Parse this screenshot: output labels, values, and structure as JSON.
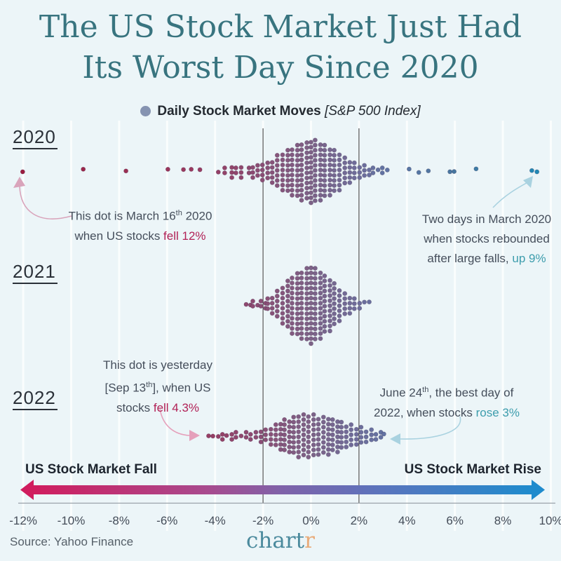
{
  "title": {
    "line1": "The US Stock Market Just Had",
    "line2": "Its Worst Day Since 2020",
    "color": "#38747f"
  },
  "legend": {
    "dot_icon": "daily-move-dot-icon",
    "dot_color": "#8593b1",
    "label": "Daily Stock Market Moves",
    "detail": "[S&P 500 Index]"
  },
  "chart_data": {
    "type": "beeswarm",
    "unit": "percent daily change",
    "x_axis": {
      "min": -12,
      "max": 10,
      "tick_values": [
        -12,
        -10,
        -8,
        -6,
        -4,
        -2,
        0,
        2,
        4,
        6,
        8,
        10
      ],
      "tick_labels": [
        "-12%",
        "-10%",
        "-8%",
        "-6%",
        "-4%",
        "-2%",
        "0%",
        "2%",
        "4%",
        "6%",
        "8%",
        "10%"
      ],
      "grid": true
    },
    "reference_lines": [
      -2,
      2
    ],
    "color_scale": [
      {
        "v": -12,
        "c": "#9b1c40"
      },
      {
        "v": -5,
        "c": "#99395f"
      },
      {
        "v": -2.5,
        "c": "#8d4a71"
      },
      {
        "v": 0,
        "c": "#7d6287"
      },
      {
        "v": 2,
        "c": "#6d6d9b"
      },
      {
        "v": 3.5,
        "c": "#5d76a6"
      },
      {
        "v": 6,
        "c": "#47769f"
      },
      {
        "v": 9.5,
        "c": "#2089b6"
      }
    ],
    "rows": [
      {
        "year": "2020",
        "columns": [
          [
            -12,
            1
          ],
          [
            -9.5,
            1
          ],
          [
            -7.7,
            1
          ],
          [
            -6,
            1
          ],
          [
            -5.3,
            1
          ],
          [
            -5,
            1
          ],
          [
            -4.6,
            1
          ],
          [
            -3.9,
            1
          ],
          [
            -3.6,
            2
          ],
          [
            -3.3,
            3
          ],
          [
            -3.1,
            2
          ],
          [
            -2.9,
            3
          ],
          [
            -2.6,
            2
          ],
          [
            -2.4,
            3
          ],
          [
            -2.2,
            3
          ],
          [
            -2,
            4
          ],
          [
            -1.8,
            4
          ],
          [
            -1.6,
            5
          ],
          [
            -1.4,
            7
          ],
          [
            -1.2,
            8
          ],
          [
            -1,
            9
          ],
          [
            -0.8,
            10
          ],
          [
            -0.6,
            11
          ],
          [
            -0.4,
            12
          ],
          [
            -0.2,
            12
          ],
          [
            0,
            13
          ],
          [
            0.2,
            13
          ],
          [
            0.4,
            12
          ],
          [
            0.6,
            11
          ],
          [
            0.8,
            10
          ],
          [
            1,
            9
          ],
          [
            1.2,
            8
          ],
          [
            1.4,
            6
          ],
          [
            1.6,
            5
          ],
          [
            1.8,
            4
          ],
          [
            2,
            3
          ],
          [
            2.2,
            3
          ],
          [
            2.4,
            2
          ],
          [
            2.6,
            2
          ],
          [
            2.8,
            1
          ],
          [
            3,
            2
          ],
          [
            3.2,
            1
          ],
          [
            4.1,
            1
          ],
          [
            4.5,
            1
          ],
          [
            4.9,
            1
          ],
          [
            5.8,
            1
          ],
          [
            6,
            1
          ],
          [
            6.9,
            1
          ],
          [
            9.2,
            1
          ],
          [
            9.4,
            1
          ]
        ]
      },
      {
        "year": "2021",
        "columns": [
          [
            -2.7,
            1
          ],
          [
            -2.5,
            1
          ],
          [
            -2.4,
            2
          ],
          [
            -2.2,
            1
          ],
          [
            -2.1,
            2
          ],
          [
            -1.9,
            2
          ],
          [
            -1.8,
            3
          ],
          [
            -1.6,
            4
          ],
          [
            -1.4,
            6
          ],
          [
            -1.2,
            8
          ],
          [
            -1,
            10
          ],
          [
            -0.8,
            12
          ],
          [
            -0.6,
            13
          ],
          [
            -0.4,
            14
          ],
          [
            -0.2,
            15
          ],
          [
            0,
            16
          ],
          [
            0.2,
            15
          ],
          [
            0.4,
            14
          ],
          [
            0.6,
            12
          ],
          [
            0.8,
            11
          ],
          [
            1,
            9
          ],
          [
            1.2,
            7
          ],
          [
            1.4,
            5
          ],
          [
            1.6,
            4
          ],
          [
            1.8,
            3
          ],
          [
            2,
            2
          ],
          [
            2.2,
            1
          ],
          [
            2.4,
            1
          ]
        ]
      },
      {
        "year": "2022",
        "columns": [
          [
            -4.3,
            1
          ],
          [
            -4.1,
            1
          ],
          [
            -3.9,
            1
          ],
          [
            -3.7,
            2
          ],
          [
            -3.5,
            1
          ],
          [
            -3.3,
            2
          ],
          [
            -3.1,
            2
          ],
          [
            -2.9,
            1
          ],
          [
            -2.7,
            2
          ],
          [
            -2.5,
            2
          ],
          [
            -2.3,
            2
          ],
          [
            -2.1,
            3
          ],
          [
            -1.9,
            3
          ],
          [
            -1.7,
            4
          ],
          [
            -1.5,
            5
          ],
          [
            -1.3,
            6
          ],
          [
            -1.1,
            7
          ],
          [
            -0.9,
            7
          ],
          [
            -0.7,
            8
          ],
          [
            -0.5,
            9
          ],
          [
            -0.3,
            9
          ],
          [
            -0.1,
            9
          ],
          [
            0.1,
            9
          ],
          [
            0.3,
            8
          ],
          [
            0.5,
            8
          ],
          [
            0.7,
            8
          ],
          [
            0.9,
            7
          ],
          [
            1.1,
            7
          ],
          [
            1.3,
            6
          ],
          [
            1.5,
            5
          ],
          [
            1.7,
            5
          ],
          [
            1.9,
            4
          ],
          [
            2.1,
            4
          ],
          [
            2.3,
            3
          ],
          [
            2.5,
            3
          ],
          [
            2.7,
            2
          ],
          [
            2.9,
            2
          ],
          [
            3.05,
            1
          ]
        ]
      }
    ]
  },
  "annotations": {
    "march16": {
      "l1a": "This dot is March 16",
      "l1sup": "th",
      "l1b": " 2020",
      "l2a": "when US stocks ",
      "l2b": "fell 12%",
      "highlight_color": "#b12156",
      "arrow_color": "#d9a4bb"
    },
    "rebound": {
      "l1": "Two days in March 2020",
      "l2": "when stocks rebounded",
      "l3a": "after large falls, ",
      "l3b": "up 9%",
      "highlight_color": "#3d9dad",
      "arrow_color": "#a9d2e0"
    },
    "sep13": {
      "l1": "This dot is yesterday",
      "l2a": "[Sep 13",
      "l2sup": "th",
      "l2b": "], when US",
      "l3a": "stocks ",
      "l3b": "fell 4.3%",
      "highlight_color": "#b12156",
      "arrow_color": "#e5a0bb"
    },
    "june24": {
      "l1a": "June 24",
      "l1sup": "th",
      "l1b": ", the best day of",
      "l2a": "2022, when stocks ",
      "l2b": "rose 3%",
      "highlight_color": "#3d9dad",
      "arrow_color": "#a9d2e0"
    }
  },
  "axis_arrow": {
    "fall_label": "US Stock Market Fall",
    "rise_label": "US Stock Market Rise",
    "gradient": [
      {
        "o": 0,
        "c": "#d01d5e"
      },
      {
        "o": 0.35,
        "c": "#a84a8e"
      },
      {
        "o": 0.5,
        "c": "#7f62a9"
      },
      {
        "o": 0.7,
        "c": "#5a74bd"
      },
      {
        "o": 1,
        "c": "#1f8bcd"
      }
    ]
  },
  "footer": {
    "source": "Source: Yahoo Finance",
    "logo_main": "chart",
    "logo_accent": "r",
    "logo_main_color": "#4b8a9d",
    "logo_accent_color": "#e9ab79"
  }
}
